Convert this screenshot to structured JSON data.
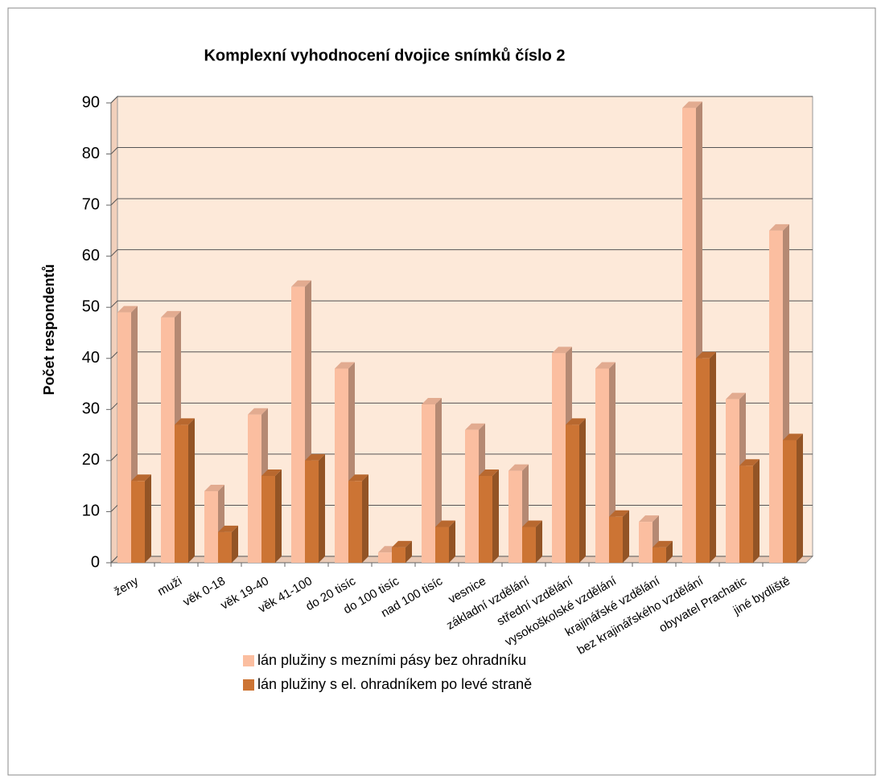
{
  "chart_data": {
    "type": "bar3d",
    "title": "Komplexní vyhodnocení dvojice snímků číslo  2",
    "y_label": "Počet respondentů",
    "categories": [
      "ženy",
      "muži",
      "věk 0-18",
      "věk 19-40",
      "věk 41-100",
      "do 20 tisíc",
      "do 100 tisíc",
      "nad 100 tisíc",
      "vesnice",
      "základní vzdělání",
      "střední vzdělání",
      "vysokoškolské vzdělání",
      "krajinářské vzdělání",
      "bez krajinářského vzdělání",
      "obyvatel Prachatic",
      "jiné bydliště"
    ],
    "series": [
      {
        "name": "lán plužiny s mezními pásy bez ohradníku",
        "color": "#fbbea0",
        "values": [
          49,
          48,
          14,
          29,
          54,
          38,
          2,
          31,
          26,
          18,
          41,
          38,
          8,
          89,
          32,
          65
        ]
      },
      {
        "name": "lán plužiny s el. ohradníkem po levé straně",
        "color": "#cc7434",
        "values": [
          16,
          27,
          6,
          17,
          20,
          16,
          3,
          7,
          17,
          7,
          27,
          9,
          3,
          40,
          19,
          24
        ]
      }
    ],
    "ylim": [
      0,
      90
    ],
    "yticks": [
      0,
      10,
      20,
      30,
      40,
      50,
      60,
      70,
      80,
      90
    ],
    "grid": true,
    "legend": "bottom"
  }
}
